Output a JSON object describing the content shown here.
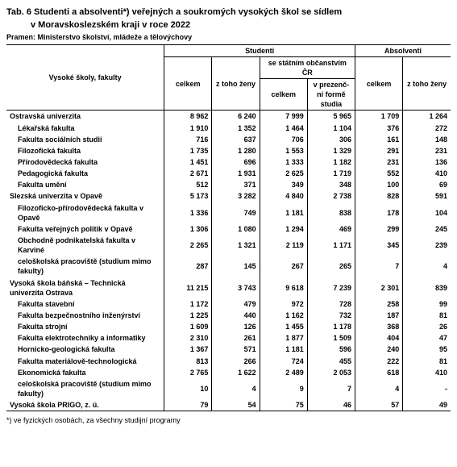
{
  "title_line1": "Tab. 6 Studenti a absolventi*) veřejných a soukromých vysokých škol se sídlem",
  "title_line2": "v Moravskoslezském kraji v roce 2022",
  "source": "Pramen: Ministerstvo školství, mládeže a tělovýchovy",
  "header": {
    "col_label": "Vysoké školy, fakulty",
    "students": "Studenti",
    "graduates": "Absolventi",
    "total": "celkem",
    "women": "z toho ženy",
    "citizenship": "se státním občanstvím ČR",
    "fulltime": "v prezenč- ní formě studia"
  },
  "rows": [
    {
      "label": "Ostravská univerzita",
      "indent": 0,
      "v": [
        "8 962",
        "6 240",
        "7 999",
        "5 965",
        "1 709",
        "1 264"
      ]
    },
    {
      "label": "Lékařská fakulta",
      "indent": 1,
      "v": [
        "1 910",
        "1 352",
        "1 464",
        "1 104",
        "376",
        "272"
      ]
    },
    {
      "label": "Fakulta sociálních studií",
      "indent": 1,
      "v": [
        "716",
        "637",
        "706",
        "306",
        "161",
        "148"
      ]
    },
    {
      "label": "Filozofická fakulta",
      "indent": 1,
      "v": [
        "1 735",
        "1 280",
        "1 553",
        "1 329",
        "291",
        "231"
      ]
    },
    {
      "label": "Přírodovědecká fakulta",
      "indent": 1,
      "v": [
        "1 451",
        "696",
        "1 333",
        "1 182",
        "231",
        "136"
      ]
    },
    {
      "label": "Pedagogická fakulta",
      "indent": 1,
      "v": [
        "2 671",
        "1 931",
        "2 625",
        "1 719",
        "552",
        "410"
      ]
    },
    {
      "label": "Fakulta umění",
      "indent": 1,
      "v": [
        "512",
        "371",
        "349",
        "348",
        "100",
        "69"
      ]
    },
    {
      "label": "Slezská univerzita v Opavě",
      "indent": 0,
      "v": [
        "5 173",
        "3 282",
        "4 840",
        "2 738",
        "828",
        "591"
      ]
    },
    {
      "label": "Filozoficko-přírodovědecká fakulta v Opavě",
      "indent": 1,
      "v": [
        "1 336",
        "749",
        "1 181",
        "838",
        "178",
        "104"
      ]
    },
    {
      "label": "Fakulta veřejných politik v Opavě",
      "indent": 1,
      "v": [
        "1 306",
        "1 080",
        "1 294",
        "469",
        "299",
        "245"
      ]
    },
    {
      "label": "Obchodně podnikatelská fakulta v Karviné",
      "indent": 1,
      "v": [
        "2 265",
        "1 321",
        "2 119",
        "1 171",
        "345",
        "239"
      ]
    },
    {
      "label": "celoškolská pracoviště (studium mimo fakulty)",
      "indent": 1,
      "v": [
        "287",
        "145",
        "267",
        "265",
        "7",
        "4"
      ]
    },
    {
      "label": "Vysoká škola báňská – Technická univerzita Ostrava",
      "indent": 0,
      "v": [
        "11 215",
        "3 743",
        "9 618",
        "7 239",
        "2 301",
        "839"
      ]
    },
    {
      "label": "Fakulta stavební",
      "indent": 1,
      "v": [
        "1 172",
        "479",
        "972",
        "728",
        "258",
        "99"
      ]
    },
    {
      "label": "Fakulta bezpečnostního inženýrství",
      "indent": 1,
      "v": [
        "1 225",
        "440",
        "1 162",
        "732",
        "187",
        "81"
      ]
    },
    {
      "label": "Fakulta strojní",
      "indent": 1,
      "v": [
        "1 609",
        "126",
        "1 455",
        "1 178",
        "368",
        "26"
      ]
    },
    {
      "label": "Fakulta elektrotechniky a informatiky",
      "indent": 1,
      "v": [
        "2 310",
        "261",
        "1 877",
        "1 509",
        "404",
        "47"
      ]
    },
    {
      "label": "Hornicko-geologická fakulta",
      "indent": 1,
      "v": [
        "1 367",
        "571",
        "1 181",
        "596",
        "240",
        "95"
      ]
    },
    {
      "label": "Fakulta materiálově-technologická",
      "indent": 1,
      "v": [
        "813",
        "266",
        "724",
        "455",
        "222",
        "81"
      ]
    },
    {
      "label": "Ekonomická fakulta",
      "indent": 1,
      "v": [
        "2 765",
        "1 622",
        "2 489",
        "2 053",
        "618",
        "410"
      ]
    },
    {
      "label": "celoškolská pracoviště (studium mimo fakulty)",
      "indent": 1,
      "v": [
        "10",
        "4",
        "9",
        "7",
        "4",
        "-"
      ]
    },
    {
      "label": "Vysoká škola PRIGO, z. ú.",
      "indent": 0,
      "v": [
        "79",
        "54",
        "75",
        "46",
        "57",
        "49"
      ]
    }
  ],
  "footnote": "*) ve fyzických osobách, za všechny studijní programy"
}
